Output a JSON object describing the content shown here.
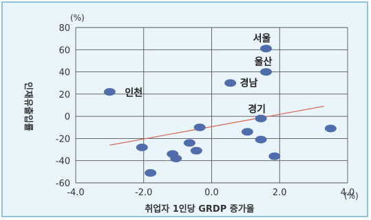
{
  "chart_data": {
    "type": "scatter",
    "y_unit": "(%)",
    "x_unit": "(%)",
    "xlabel": "취업자 1인당 GRDP 증가율",
    "ylabel": "인재유출입률",
    "xlim": [
      -4.0,
      4.0
    ],
    "ylim": [
      -60,
      80
    ],
    "x_ticks": [
      -4.0,
      -2.0,
      0.0,
      2.0,
      4.0
    ],
    "x_tick_labels": [
      "-4.0",
      "-2.0",
      "0.0",
      "2.0",
      "4.0"
    ],
    "y_ticks": [
      80,
      60,
      40,
      20,
      0,
      -20,
      -40,
      -60
    ],
    "y_tick_labels": [
      "80",
      "60",
      "40",
      "20",
      "0",
      "-20",
      "-40",
      "-60"
    ],
    "grid": "horizontal and vertical",
    "point_color": "#4f6dab",
    "trend_color": "#d96b5a",
    "points": [
      {
        "x": -3.0,
        "y": 22,
        "label": "인천"
      },
      {
        "x": -2.05,
        "y": -28,
        "label": ""
      },
      {
        "x": -1.8,
        "y": -51,
        "label": ""
      },
      {
        "x": -1.15,
        "y": -34,
        "label": ""
      },
      {
        "x": -1.05,
        "y": -38,
        "label": ""
      },
      {
        "x": -0.65,
        "y": -24,
        "label": ""
      },
      {
        "x": -0.45,
        "y": -31,
        "label": ""
      },
      {
        "x": -0.35,
        "y": -10,
        "label": ""
      },
      {
        "x": 0.55,
        "y": 30,
        "label": "경남"
      },
      {
        "x": 1.05,
        "y": -14,
        "label": ""
      },
      {
        "x": 1.45,
        "y": -21,
        "label": ""
      },
      {
        "x": 1.45,
        "y": -2,
        "label": "경기"
      },
      {
        "x": 1.6,
        "y": 61,
        "label": "서울"
      },
      {
        "x": 1.6,
        "y": 40,
        "label": "울산"
      },
      {
        "x": 1.85,
        "y": -36,
        "label": ""
      },
      {
        "x": 3.5,
        "y": -11,
        "label": ""
      }
    ],
    "trendline": {
      "x": [
        -3.0,
        3.3
      ],
      "y": [
        -26,
        9
      ]
    }
  }
}
